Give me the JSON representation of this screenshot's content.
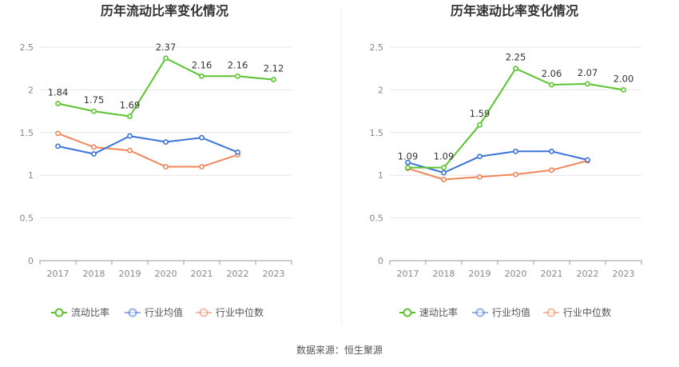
{
  "source_text": "数据来源：恒生聚源",
  "chart_data": [
    {
      "type": "line",
      "title": "历年流动比率变化情况",
      "categories": [
        "2017",
        "2018",
        "2019",
        "2020",
        "2021",
        "2022",
        "2023"
      ],
      "ylim": [
        0,
        2.5
      ],
      "yticks": [
        "0",
        "0.5",
        "1",
        "1.5",
        "2",
        "2.5"
      ],
      "grid": true,
      "legend_position": "bottom",
      "series": [
        {
          "name": "流动比率",
          "color": "#5ac42e",
          "values": [
            1.84,
            1.75,
            1.69,
            2.37,
            2.16,
            2.16,
            2.12
          ],
          "labels": [
            "1.84",
            "1.75",
            "1.69",
            "2.37",
            "2.16",
            "2.16",
            "2.12"
          ]
        },
        {
          "name": "行业均值",
          "color": "#3b73d9",
          "values": [
            1.34,
            1.25,
            1.46,
            1.39,
            1.44,
            1.27,
            null
          ]
        },
        {
          "name": "行业中位数",
          "color": "#f0865a",
          "values": [
            1.49,
            1.33,
            1.29,
            1.1,
            1.1,
            1.24,
            null
          ]
        }
      ]
    },
    {
      "type": "line",
      "title": "历年速动比率变化情况",
      "categories": [
        "2017",
        "2018",
        "2019",
        "2020",
        "2021",
        "2022",
        "2023"
      ],
      "ylim": [
        0,
        2.5
      ],
      "yticks": [
        "0",
        "0.5",
        "1",
        "1.5",
        "2",
        "2.5"
      ],
      "grid": true,
      "legend_position": "bottom",
      "series": [
        {
          "name": "速动比率",
          "color": "#5ac42e",
          "values": [
            1.09,
            1.09,
            1.59,
            2.25,
            2.06,
            2.07,
            2.0
          ],
          "labels": [
            "1.09",
            "1.09",
            "1.59",
            "2.25",
            "2.06",
            "2.07",
            "2.00"
          ]
        },
        {
          "name": "行业均值",
          "color": "#3b73d9",
          "values": [
            1.15,
            1.03,
            1.22,
            1.28,
            1.28,
            1.18,
            null
          ]
        },
        {
          "name": "行业中位数",
          "color": "#f0865a",
          "values": [
            1.08,
            0.95,
            0.98,
            1.01,
            1.06,
            1.17,
            null
          ]
        }
      ]
    }
  ]
}
